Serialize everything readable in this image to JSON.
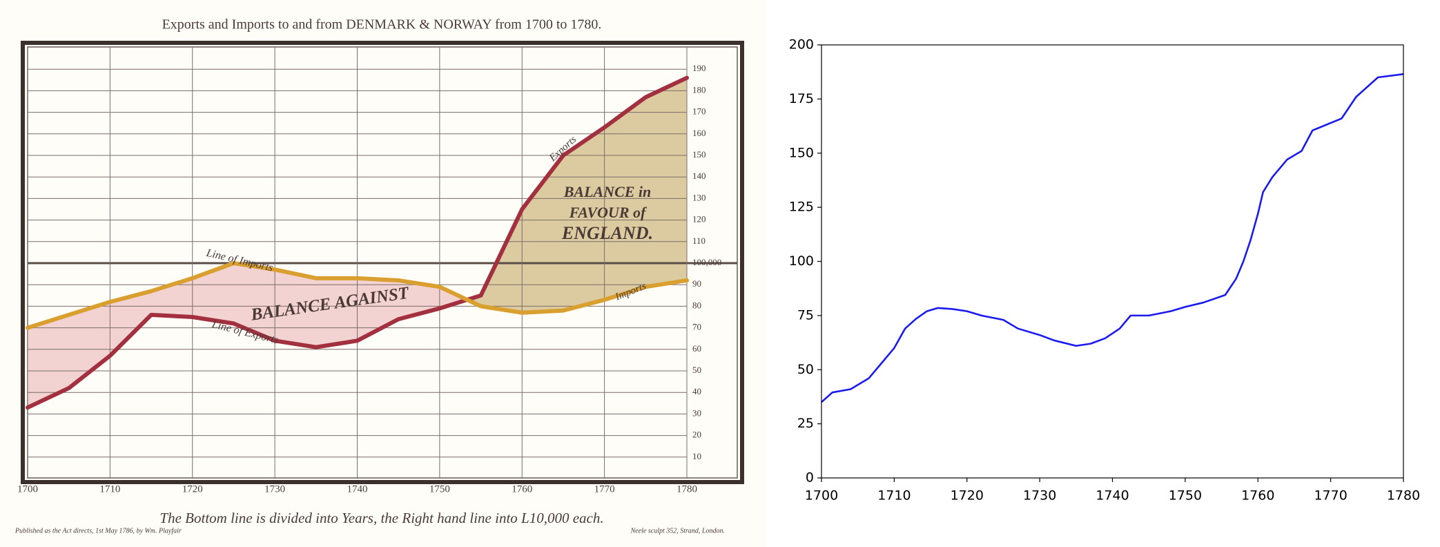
{
  "chart_data": [
    {
      "type": "line",
      "title": "Exports and Imports to and from DENMARK & NORWAY from 1700 to 1780.",
      "x": [
        1700,
        1705,
        1710,
        1715,
        1720,
        1725,
        1730,
        1735,
        1740,
        1745,
        1750,
        1755,
        1760,
        1765,
        1770,
        1775,
        1780
      ],
      "series": [
        {
          "name": "Exports",
          "color": "#a3303f",
          "values": [
            33,
            42,
            57,
            76,
            75,
            72,
            64,
            61,
            64,
            74,
            79,
            85,
            125,
            150,
            163,
            177,
            186
          ]
        },
        {
          "name": "Imports",
          "color": "#d9a030",
          "values": [
            70,
            76,
            82,
            87,
            93,
            100,
            97,
            93,
            93,
            92,
            89,
            80,
            77,
            78,
            83,
            89,
            92
          ]
        }
      ],
      "fill_colors": [
        "#f3d2d2",
        "#dccba0"
      ],
      "xlim": [
        1700,
        1780
      ],
      "xticks": [
        1700,
        1710,
        1720,
        1730,
        1740,
        1750,
        1760,
        1770,
        1780
      ],
      "ylim": [
        0,
        200
      ],
      "yticks": [
        10,
        20,
        30,
        40,
        50,
        60,
        70,
        80,
        90,
        {
          "value": 100,
          "label": "100,000"
        },
        110,
        120,
        130,
        140,
        150,
        160,
        170,
        180,
        190
      ],
      "grid": true,
      "annotations": [
        "Line of Imports",
        "Line of Exports",
        "BALANCE AGAINST",
        "BALANCE in",
        "FAVOUR of",
        "ENGLAND.",
        "Exports",
        "Imports"
      ],
      "caption": "The Bottom line is divided into Years, the Right hand line into L10,000 each.",
      "footer_left": "Published as the Act directs, 1st May 1786, by Wm. Playfair",
      "footer_right": "Neele sculpt 352, Strand, London."
    },
    {
      "type": "line",
      "x": [
        1700,
        1701.5,
        1704,
        1706.5,
        1708,
        1710,
        1711.5,
        1713,
        1714.5,
        1716,
        1718,
        1720,
        1722,
        1725,
        1727,
        1730,
        1732,
        1735,
        1737,
        1739,
        1741,
        1742.5,
        1745,
        1748,
        1750,
        1752.5,
        1755.5,
        1757,
        1758,
        1759,
        1760,
        1760.7,
        1762,
        1764,
        1766,
        1767.5,
        1771.5,
        1773.5,
        1776.5,
        1780
      ],
      "series": [
        {
          "color": "#1a1aee",
          "values": [
            35,
            39.5,
            41,
            46,
            52,
            60,
            69,
            73.5,
            77,
            78.5,
            78,
            77,
            75,
            73,
            69,
            66,
            63.5,
            61,
            62,
            64.5,
            69,
            75,
            75,
            77,
            79,
            81,
            84.5,
            92,
            100,
            110,
            122,
            132,
            139,
            147,
            151,
            160.5,
            166,
            176,
            185,
            186.5
          ]
        }
      ],
      "xlim": [
        1700,
        1780
      ],
      "xticks": [
        1700,
        1710,
        1720,
        1730,
        1740,
        1750,
        1760,
        1770,
        1780
      ],
      "ylim": [
        0,
        200
      ],
      "yticks": [
        0,
        25,
        50,
        75,
        100,
        125,
        150,
        175,
        200
      ]
    }
  ]
}
